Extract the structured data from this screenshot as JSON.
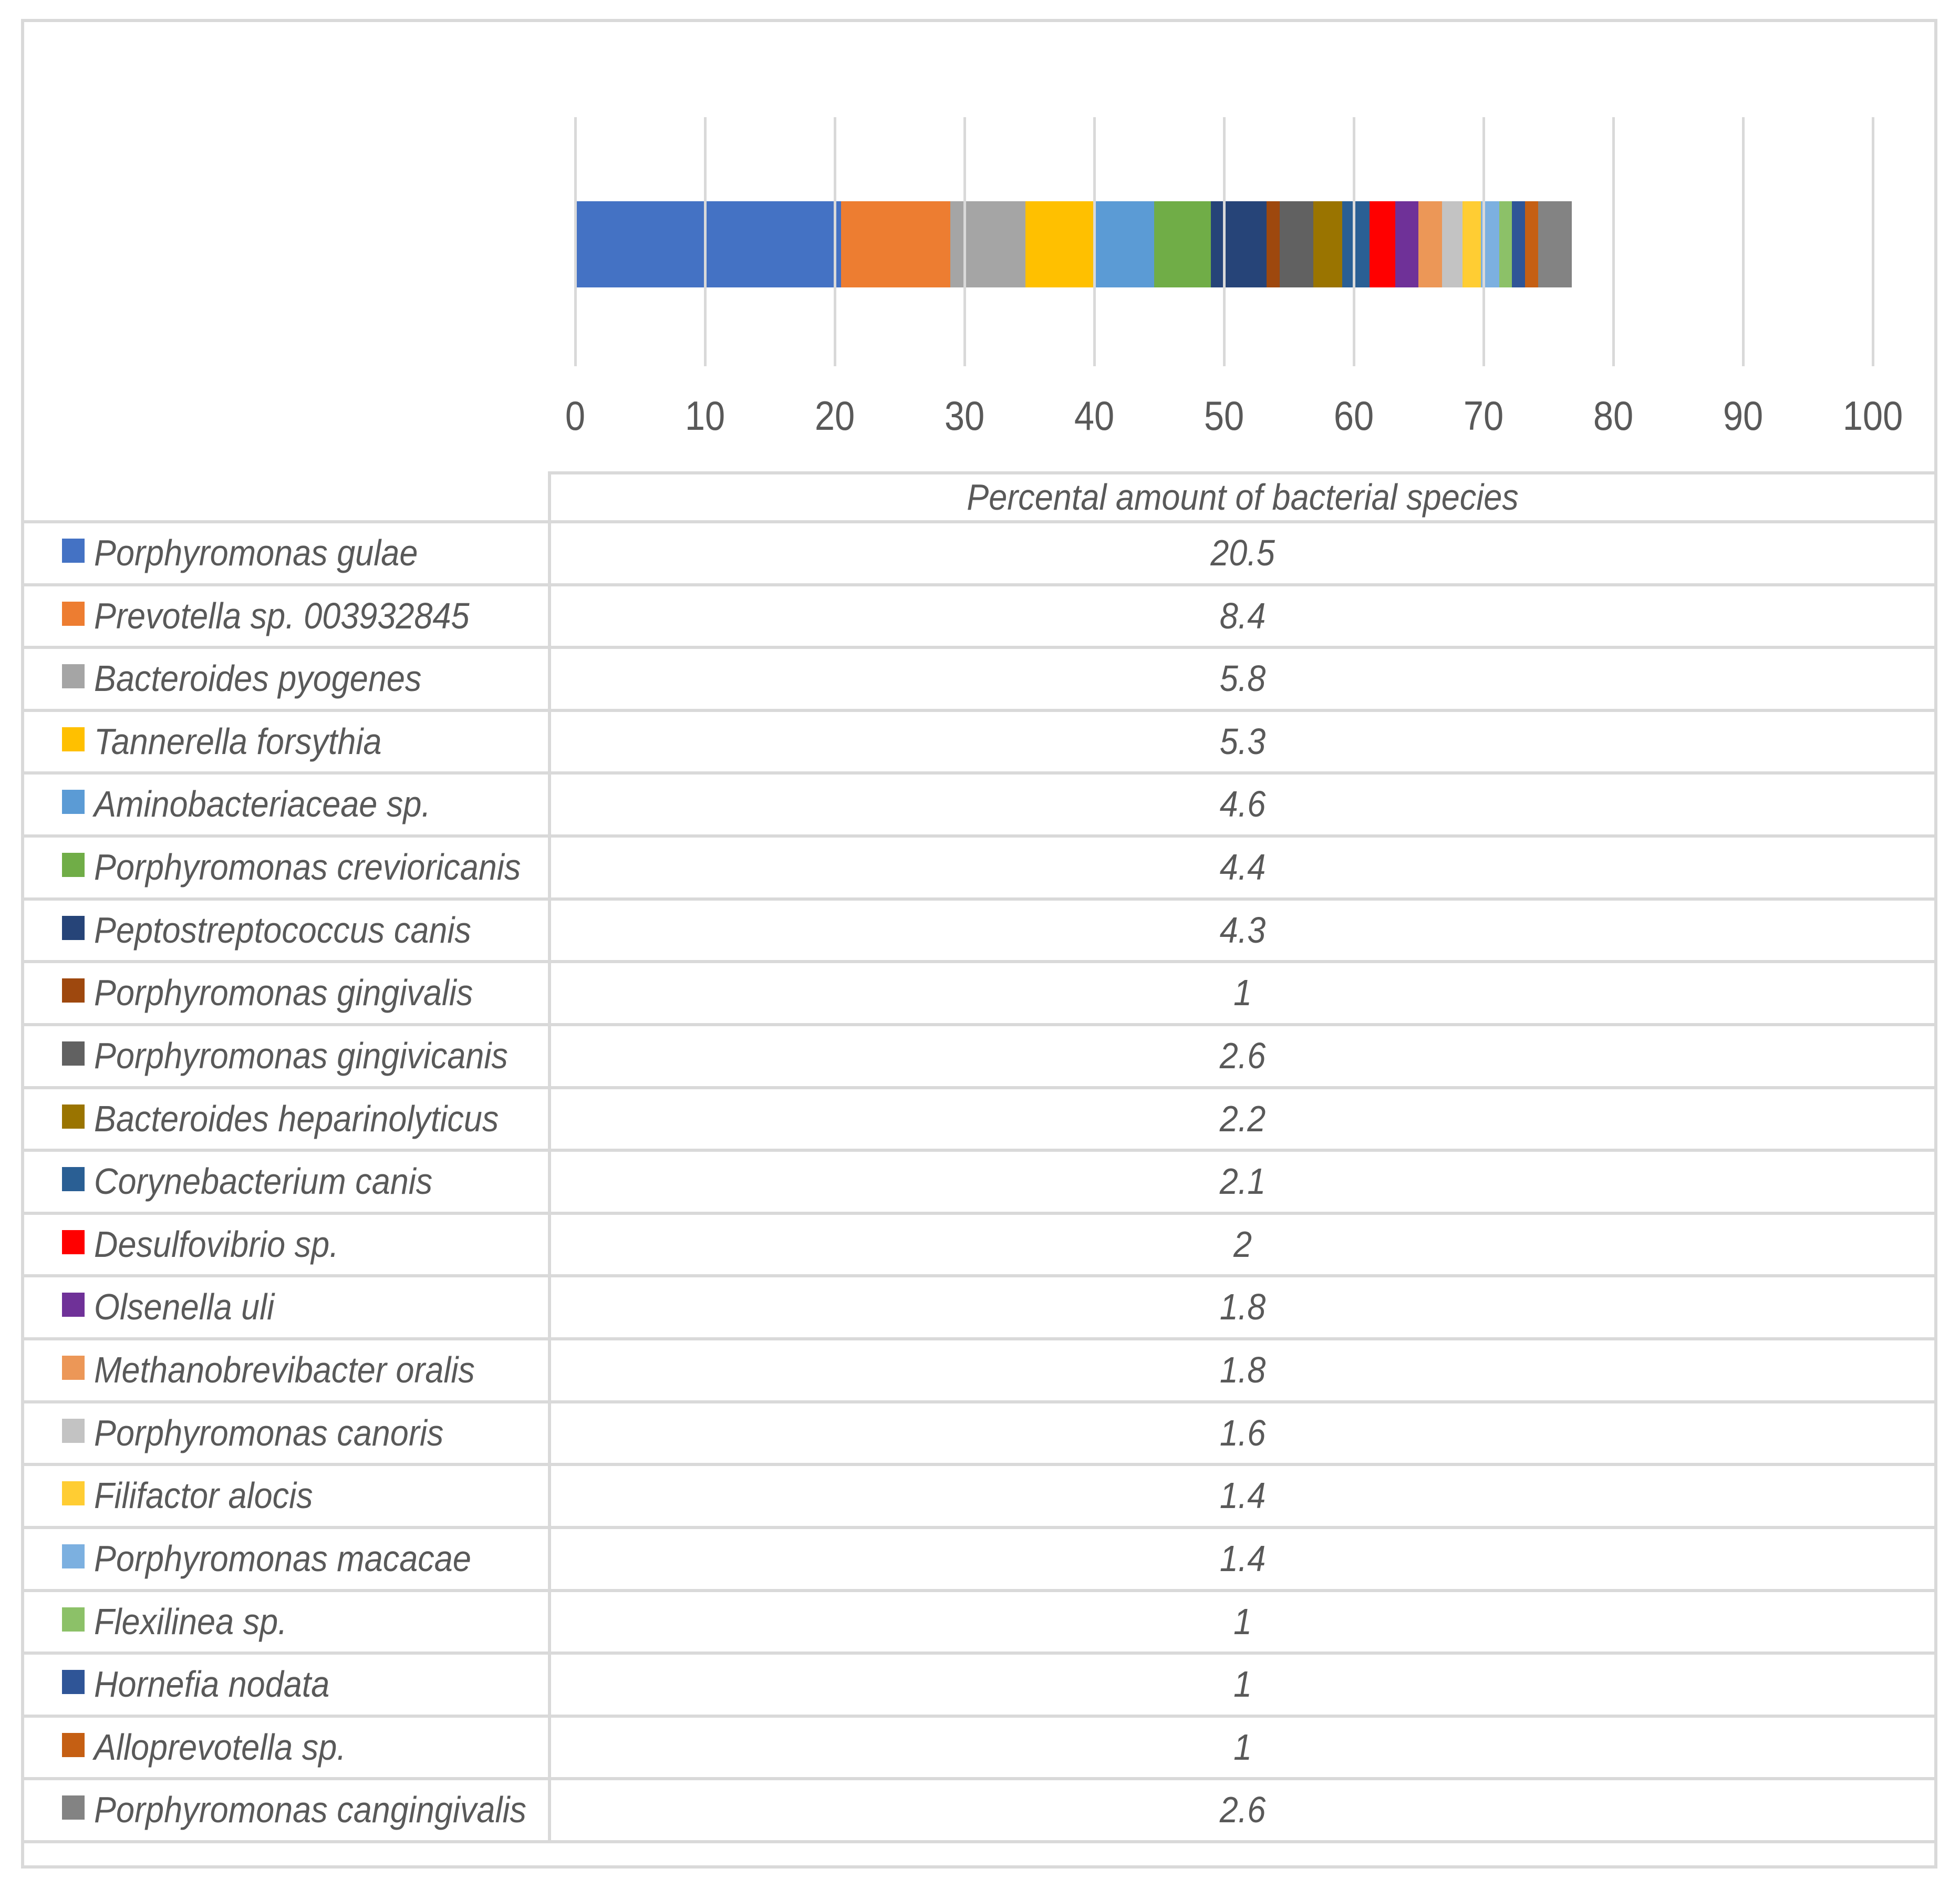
{
  "chart_data": {
    "type": "bar",
    "stacked": true,
    "orientation": "horizontal",
    "title": "",
    "value_column_header": "Percental amount of bacterial species",
    "categories": [
      "Percental amount of bacterial species"
    ],
    "xlim": [
      0,
      100
    ],
    "ticks": [
      0,
      10,
      20,
      30,
      40,
      50,
      60,
      70,
      80,
      90,
      100
    ],
    "grid": true,
    "legend_position": "data-table-left-column",
    "total_stacked_value": 76.8,
    "series": [
      {
        "name": "Porphyromonas gulae",
        "value": 20.5,
        "color": "#4472C4"
      },
      {
        "name": "Prevotella sp. 003932845",
        "value": 8.4,
        "color": "#ED7D31"
      },
      {
        "name": "Bacteroides pyogenes",
        "value": 5.8,
        "color": "#A5A5A5"
      },
      {
        "name": "Tannerella forsythia",
        "value": 5.3,
        "color": "#FFC000"
      },
      {
        "name": "Aminobacteriaceae sp.",
        "value": 4.6,
        "color": "#5B9BD5"
      },
      {
        "name": "Porphyromonas crevioricanis",
        "value": 4.4,
        "color": "#70AD47"
      },
      {
        "name": "Peptostreptococcus canis",
        "value": 4.3,
        "color": "#264478"
      },
      {
        "name": "Porphyromonas gingivalis",
        "value": 1,
        "color": "#9E480E"
      },
      {
        "name": "Porphyromonas gingivicanis",
        "value": 2.6,
        "color": "#616161"
      },
      {
        "name": "Bacteroides heparinolyticus",
        "value": 2.2,
        "color": "#9A7400"
      },
      {
        "name": "Corynebacterium canis",
        "value": 2.1,
        "color": "#2A5F94"
      },
      {
        "name": "Desulfovibrio sp.",
        "value": 2,
        "color": "#FF0000"
      },
      {
        "name": "Olsenella uli",
        "value": 1.8,
        "color": "#6F3198"
      },
      {
        "name": "Methanobrevibacter oralis",
        "value": 1.8,
        "color": "#EC9757"
      },
      {
        "name": "Porphyromonas canoris",
        "value": 1.6,
        "color": "#C3C3C3"
      },
      {
        "name": "Filifactor alocis",
        "value": 1.4,
        "color": "#FFCD33"
      },
      {
        "name": "Porphyromonas macacae",
        "value": 1.4,
        "color": "#7CB0E0"
      },
      {
        "name": "Flexilinea sp.",
        "value": 1,
        "color": "#8CC168"
      },
      {
        "name": "Hornefia nodata",
        "value": 1,
        "color": "#2F5597"
      },
      {
        "name": "Alloprevotella sp.",
        "value": 1,
        "color": "#C55F13"
      },
      {
        "name": "Porphyromonas cangingivalis",
        "value": 2.6,
        "color": "#838383"
      }
    ]
  },
  "colors": {
    "gridline": "#D9D9D9",
    "frame": "#D9D9D9",
    "text": "#595959"
  }
}
